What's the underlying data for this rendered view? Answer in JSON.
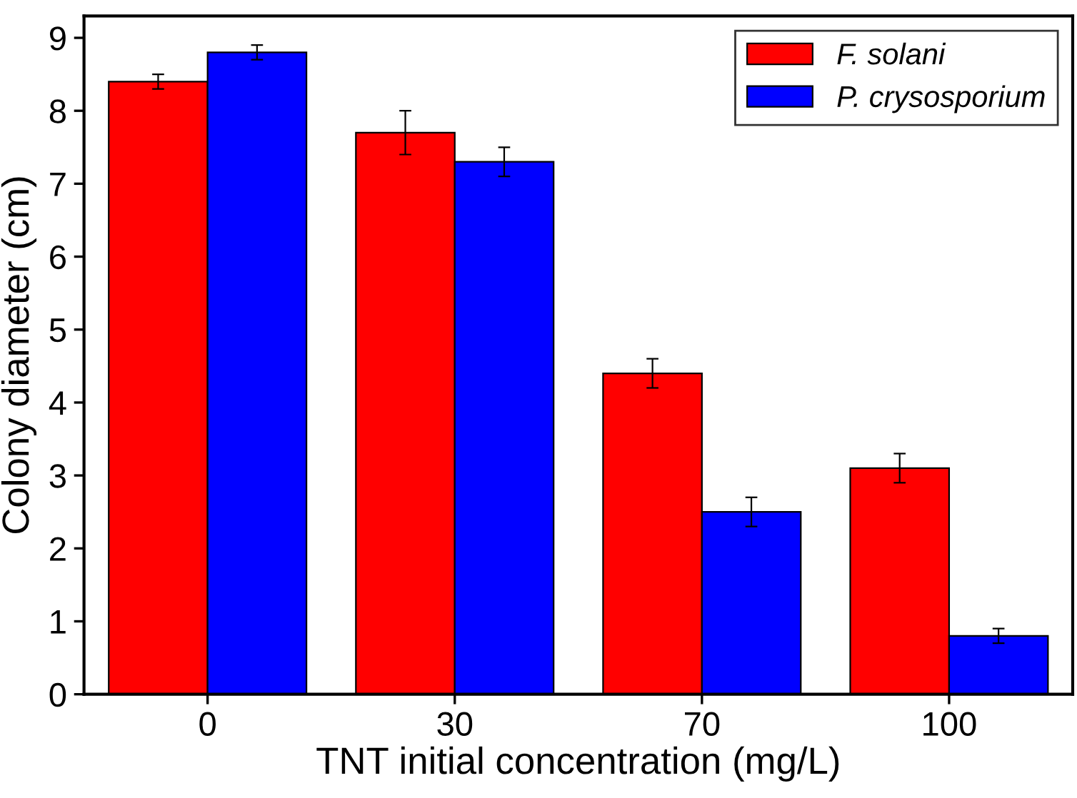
{
  "chart_data": {
    "type": "bar",
    "xlabel": "TNT initial concentration (mg/L)",
    "ylabel": "Colony diameter (cm)",
    "categories": [
      "0",
      "30",
      "70",
      "100"
    ],
    "series": [
      {
        "name": "F. solani",
        "color": "#ff0000",
        "values": [
          8.4,
          7.7,
          4.4,
          3.1
        ],
        "errors": [
          0.1,
          0.3,
          0.2,
          0.2
        ]
      },
      {
        "name": "P. crysosporium",
        "color": "#0000ff",
        "values": [
          8.8,
          7.3,
          2.5,
          0.8
        ],
        "errors": [
          0.1,
          0.2,
          0.2,
          0.1
        ]
      }
    ],
    "ylim": [
      0,
      9.3
    ],
    "yticks": [
      0,
      1,
      2,
      3,
      4,
      5,
      6,
      7,
      8,
      9
    ],
    "grid": false,
    "legend": "top right"
  }
}
